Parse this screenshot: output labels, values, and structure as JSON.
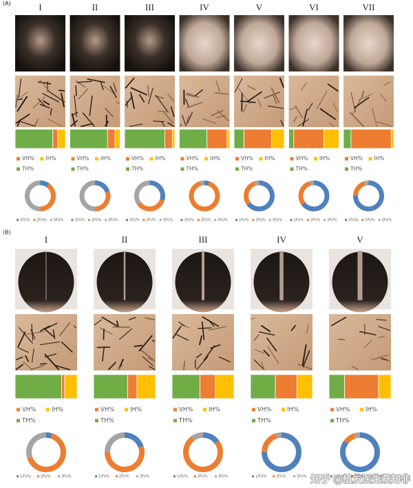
{
  "panels": [
    {
      "label": "(A)",
      "bar_legend": [
        "VH%",
        "IH%",
        "TH%"
      ],
      "donut_legend": [
        "1FU%",
        "2FU%",
        "3FU%"
      ],
      "stages": [
        {
          "label": "I",
          "hair_types": [
            10,
            15,
            75
          ],
          "follicular_units": [
            10,
            40,
            50
          ]
        },
        {
          "label": "II",
          "hair_types": [
            15,
            10,
            75
          ],
          "follicular_units": [
            20,
            30,
            50
          ]
        },
        {
          "label": "III",
          "hair_types": [
            15,
            5,
            80
          ],
          "follicular_units": [
            30,
            35,
            35
          ]
        },
        {
          "label": "IV",
          "hair_types": [
            40,
            5,
            55
          ],
          "follicular_units": [
            5,
            90,
            5
          ]
        },
        {
          "label": "V",
          "hair_types": [
            55,
            25,
            20
          ],
          "follicular_units": [
            65,
            30,
            5
          ]
        },
        {
          "label": "VI",
          "hair_types": [
            60,
            30,
            10
          ],
          "follicular_units": [
            65,
            30,
            5
          ]
        },
        {
          "label": "VII",
          "hair_types": [
            80,
            5,
            15
          ],
          "follicular_units": [
            75,
            20,
            5
          ]
        }
      ]
    },
    {
      "label": "(B)",
      "bar_legend": [
        "VH%",
        "IH%",
        "TH%"
      ],
      "donut_legend": [
        "1/FU%",
        "2FU%",
        "3FU%"
      ],
      "stages": [
        {
          "label": "I",
          "hair_types": [
            5,
            20,
            75
          ],
          "follicular_units": [
            5,
            65,
            30
          ]
        },
        {
          "label": "II",
          "hair_types": [
            15,
            30,
            55
          ],
          "follicular_units": [
            20,
            55,
            25
          ]
        },
        {
          "label": "III",
          "hair_types": [
            25,
            30,
            45
          ],
          "follicular_units": [
            15,
            75,
            10
          ]
        },
        {
          "label": "IV",
          "hair_types": [
            35,
            25,
            40
          ],
          "follicular_units": [
            75,
            20,
            5
          ]
        },
        {
          "label": "V",
          "hair_types": [
            55,
            20,
            25
          ],
          "follicular_units": [
            85,
            10,
            5
          ]
        }
      ]
    }
  ],
  "hair_type_colors": [
    "#ed7d31",
    "#ffc000",
    "#70ad47"
  ],
  "follicular_unit_colors": [
    "#4f81bd",
    "#ed7d31",
    "#a5a5a5"
  ],
  "watermark": "知乎 @植发医生蔡知非"
}
